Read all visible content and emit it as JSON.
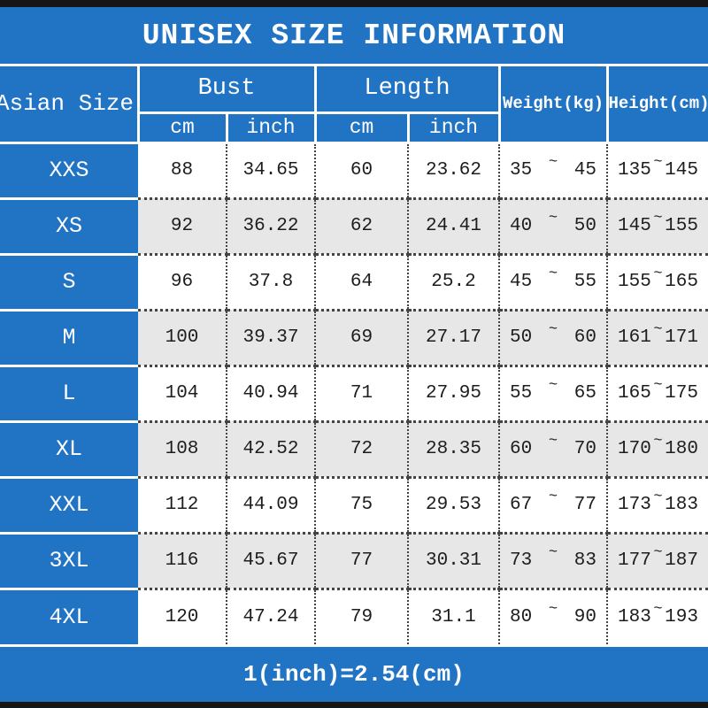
{
  "title": "UNISEX SIZE INFORMATION",
  "footer_note": "1(inch)=2.54(cm)",
  "colors": {
    "accent_blue": "#2173c4",
    "alt_row_gray": "#e7e7e7",
    "border_bar_black": "#161616",
    "grid_white": "#ffffff",
    "dotted_line_gray": "#444444"
  },
  "table": {
    "tilde": "~",
    "headers": {
      "asian_size": "Asian Size",
      "bust": "Bust",
      "length": "Length",
      "weight": "Weight(kg)",
      "height": "Height(cm)",
      "bust_cm": "cm",
      "bust_inch": "inch",
      "length_cm": "cm",
      "length_inch": "inch"
    },
    "rows": [
      {
        "size": "XXS",
        "bust_cm": "88",
        "bust_inch": "34.65",
        "length_cm": "60",
        "length_inch": "23.62",
        "weight": [
          "35",
          "45"
        ],
        "height": [
          "135",
          "145"
        ]
      },
      {
        "size": "XS",
        "bust_cm": "92",
        "bust_inch": "36.22",
        "length_cm": "62",
        "length_inch": "24.41",
        "weight": [
          "40",
          "50"
        ],
        "height": [
          "145",
          "155"
        ]
      },
      {
        "size": "S",
        "bust_cm": "96",
        "bust_inch": "37.8",
        "length_cm": "64",
        "length_inch": "25.2",
        "weight": [
          "45",
          "55"
        ],
        "height": [
          "155",
          "165"
        ]
      },
      {
        "size": "M",
        "bust_cm": "100",
        "bust_inch": "39.37",
        "length_cm": "69",
        "length_inch": "27.17",
        "weight": [
          "50",
          "60"
        ],
        "height": [
          "161",
          "171"
        ]
      },
      {
        "size": "L",
        "bust_cm": "104",
        "bust_inch": "40.94",
        "length_cm": "71",
        "length_inch": "27.95",
        "weight": [
          "55",
          "65"
        ],
        "height": [
          "165",
          "175"
        ]
      },
      {
        "size": "XL",
        "bust_cm": "108",
        "bust_inch": "42.52",
        "length_cm": "72",
        "length_inch": "28.35",
        "weight": [
          "60",
          "70"
        ],
        "height": [
          "170",
          "180"
        ]
      },
      {
        "size": "XXL",
        "bust_cm": "112",
        "bust_inch": "44.09",
        "length_cm": "75",
        "length_inch": "29.53",
        "weight": [
          "67",
          "77"
        ],
        "height": [
          "173",
          "183"
        ]
      },
      {
        "size": "3XL",
        "bust_cm": "116",
        "bust_inch": "45.67",
        "length_cm": "77",
        "length_inch": "30.31",
        "weight": [
          "73",
          "83"
        ],
        "height": [
          "177",
          "187"
        ]
      },
      {
        "size": "4XL",
        "bust_cm": "120",
        "bust_inch": "47.24",
        "length_cm": "79",
        "length_inch": "31.1",
        "weight": [
          "80",
          "90"
        ],
        "height": [
          "183",
          "193"
        ]
      }
    ]
  }
}
